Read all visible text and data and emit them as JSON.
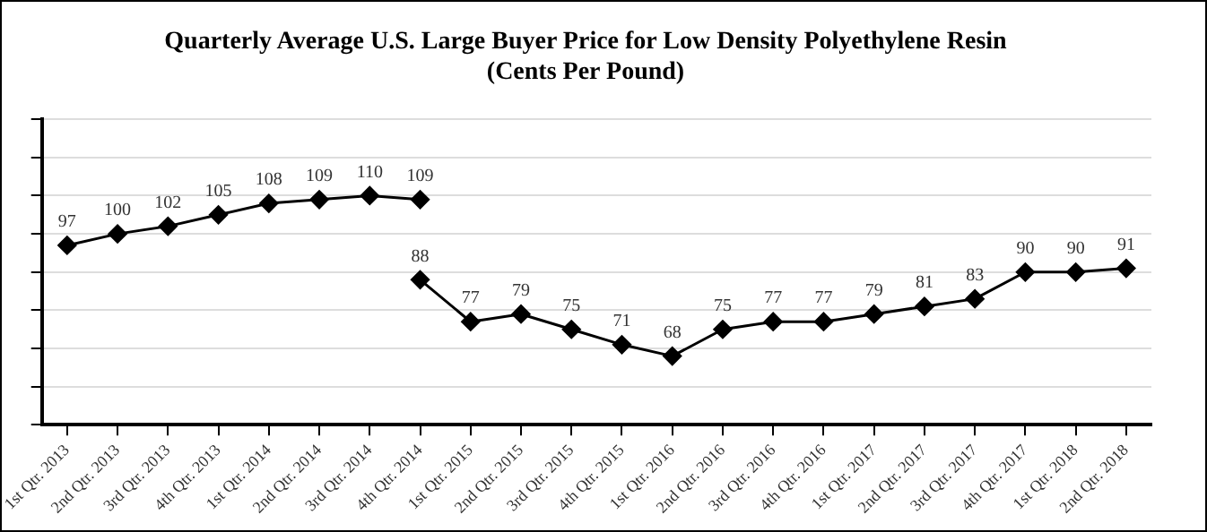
{
  "chart_data": {
    "type": "line",
    "title": "Quarterly Average U.S. Large Buyer Price for Low Density Polyethylene Resin\n(Cents Per Pound)",
    "categories": [
      "1st Qtr. 2013",
      "2nd Qtr. 2013",
      "3rd Qtr. 2013",
      "4th Qtr. 2013",
      "1st Qtr. 2014",
      "2nd Qtr. 2014",
      "3rd Qtr. 2014",
      "4th Qtr. 2014",
      "1st Qtr. 2015",
      "2nd Qtr. 2015",
      "3rd Qtr. 2015",
      "4th Qtr. 2015",
      "1st Qtr. 2016",
      "2nd Qtr. 2016",
      "3rd Qtr. 2016",
      "4th Qtr. 2016",
      "1st Qtr. 2017",
      "2nd Qtr. 2017",
      "3rd Qtr. 2017",
      "4th Qtr. 2017",
      "1st Qtr. 2018",
      "2nd Qtr. 2018"
    ],
    "series": [
      {
        "color": "#000000",
        "values": [
          97,
          100,
          102,
          105,
          108,
          109,
          110,
          109,
          null,
          null,
          null,
          null,
          null,
          null,
          null,
          null,
          null,
          null,
          null,
          null,
          null,
          null
        ]
      },
      {
        "color": "#000000",
        "values": [
          null,
          null,
          null,
          null,
          null,
          null,
          null,
          88,
          77,
          79,
          75,
          71,
          68,
          75,
          77,
          77,
          79,
          81,
          83,
          90,
          90,
          91
        ]
      }
    ],
    "ylim": [
      50,
      130
    ],
    "yticks": [
      {
        "value": 50,
        "label": null
      },
      {
        "value": 60,
        "label": null
      },
      {
        "value": 70,
        "label": null
      },
      {
        "value": 80,
        "label": null
      },
      {
        "value": 90,
        "label": null
      },
      {
        "value": 100,
        "label": null
      },
      {
        "value": 110,
        "label": null
      },
      {
        "value": 120,
        "label": null
      },
      {
        "value": 130,
        "label": null
      }
    ],
    "tick_labels": "x",
    "grid": "y",
    "legend": false,
    "marker": "diamond",
    "line_style": "solid",
    "data_labels": true
  }
}
